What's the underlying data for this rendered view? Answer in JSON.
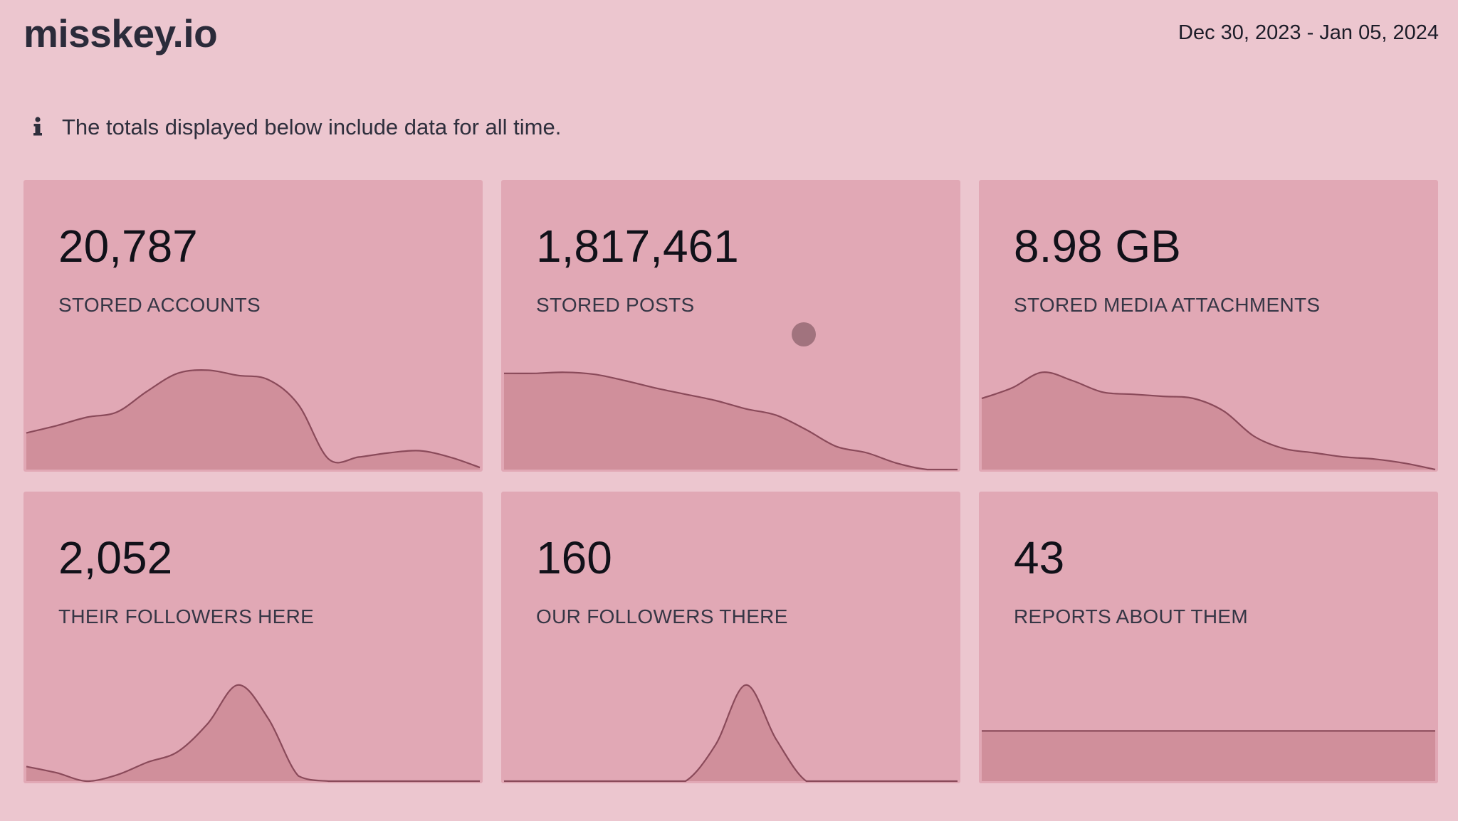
{
  "header": {
    "brand": "misskey.io",
    "date_range": "Dec 30, 2023 - Jan 05, 2024"
  },
  "notice": {
    "icon": "info-icon",
    "text": "The totals displayed below include data for all time."
  },
  "colors": {
    "background": "#ecc6cf",
    "card": "#e1a8b5",
    "sparkline_fill": "#d08f9b",
    "sparkline_stroke": "#8a4a5a"
  },
  "cards": [
    {
      "value": "20,787",
      "label": "STORED ACCOUNTS",
      "trend": [
        0.35,
        0.42,
        0.5,
        0.55,
        0.75,
        0.92,
        0.95,
        0.9,
        0.86,
        0.62,
        0.1,
        0.12,
        0.16,
        0.18,
        0.12,
        0.02
      ]
    },
    {
      "value": "1,817,461",
      "label": "STORED POSTS",
      "trend": [
        0.92,
        0.92,
        0.93,
        0.91,
        0.85,
        0.78,
        0.72,
        0.66,
        0.58,
        0.52,
        0.38,
        0.22,
        0.16,
        0.06,
        0.0,
        0.0
      ]
    },
    {
      "value": "8.98 GB",
      "label": "STORED MEDIA ATTACHMENTS",
      "trend": [
        0.68,
        0.78,
        0.93,
        0.85,
        0.74,
        0.72,
        0.7,
        0.68,
        0.56,
        0.32,
        0.2,
        0.16,
        0.12,
        0.1,
        0.06,
        0.0
      ]
    },
    {
      "value": "2,052",
      "label": "THEIR FOLLOWERS HERE",
      "trend": [
        0.14,
        0.08,
        0.0,
        0.06,
        0.18,
        0.28,
        0.55,
        0.92,
        0.6,
        0.05,
        0.0,
        0.0,
        0.0,
        0.0,
        0.0,
        0.0
      ]
    },
    {
      "value": "160",
      "label": "OUR FOLLOWERS THERE",
      "trend": [
        0.0,
        0.0,
        0.0,
        0.0,
        0.0,
        0.0,
        0.0,
        0.35,
        0.92,
        0.4,
        0.0,
        0.0,
        0.0,
        0.0,
        0.0,
        0.0
      ]
    },
    {
      "value": "43",
      "label": "REPORTS ABOUT THEM",
      "trend": [
        0.48,
        0.48,
        0.48,
        0.48,
        0.48,
        0.48,
        0.48,
        0.48,
        0.48,
        0.48,
        0.48,
        0.48,
        0.48,
        0.48,
        0.48,
        0.48
      ]
    }
  ]
}
